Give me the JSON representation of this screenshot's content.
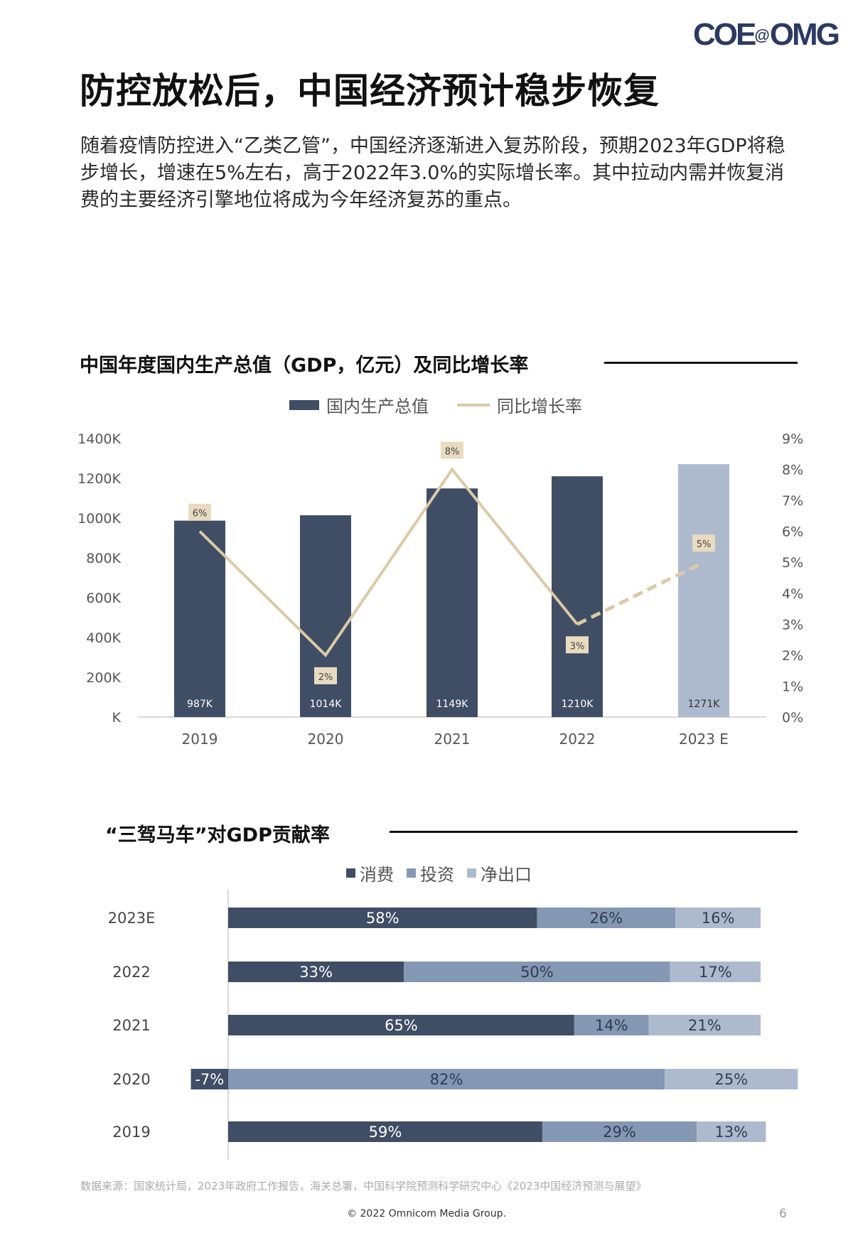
{
  "logo": "COE@OMG",
  "title": "防控放松后，中国经济预计稳步恢复",
  "paragraph": "随着疫情防控进入“乙类乙管”，中国经济逐渐进入复苏阶段，预期2023年GDP将稳步增长，增速在5%左右，高于2022年3.0%的实际增长率。其中拉动内需并恢复消费的主要经济引擎地位将成为今年经济复苏的重点。",
  "colors": {
    "dark": "#3f4d65",
    "mid": "#8497b3",
    "light": "#adbace",
    "line": "#dcc9a6",
    "labelbox": "#e9dbbf"
  },
  "chart_data": [
    {
      "type": "bar+line",
      "title": "中国年度国内生产总值（GDP，亿元）及同比增长率",
      "legend": [
        "国内生产总值",
        "同比增长率"
      ],
      "categories": [
        "2019",
        "2020",
        "2021",
        "2022",
        "2023 E"
      ],
      "bar_values": [
        987,
        1014,
        1149,
        1210,
        1271
      ],
      "bar_labels": [
        "987K",
        "1014K",
        "1149K",
        "1210K",
        "1271K"
      ],
      "line_values": [
        6,
        2,
        8,
        3,
        5
      ],
      "line_labels": [
        "6%",
        "2%",
        "8%",
        "3%",
        "5%"
      ],
      "estimated_last": true,
      "y_left_ticks": [
        "K",
        "200K",
        "400K",
        "600K",
        "800K",
        "1000K",
        "1200K",
        "1400K"
      ],
      "ylim_left": [
        0,
        1400
      ],
      "y_right_ticks": [
        "0%",
        "1%",
        "2%",
        "3%",
        "4%",
        "5%",
        "6%",
        "7%",
        "8%",
        "9%"
      ],
      "ylim_right": [
        0,
        9
      ]
    },
    {
      "type": "stacked-bar-horizontal",
      "title": "“三驾马车”对GDP贡献率",
      "legend": [
        "消费",
        "投资",
        "净出口"
      ],
      "categories": [
        "2023E",
        "2022",
        "2021",
        "2020",
        "2019"
      ],
      "series": [
        {
          "name": "消费",
          "values": [
            58,
            33,
            65,
            -7,
            59
          ]
        },
        {
          "name": "投资",
          "values": [
            26,
            50,
            14,
            82,
            29
          ]
        },
        {
          "name": "净出口",
          "values": [
            16,
            17,
            21,
            25,
            13
          ]
        }
      ]
    }
  ],
  "footer": {
    "source": "数据来源：国家统计局，2023年政府工作报告，海关总署，中国科学院预测科学研究中心《2023中国经济预测与展望》",
    "copyright": "© 2022 Omnicom Media Group.",
    "page": "6"
  }
}
